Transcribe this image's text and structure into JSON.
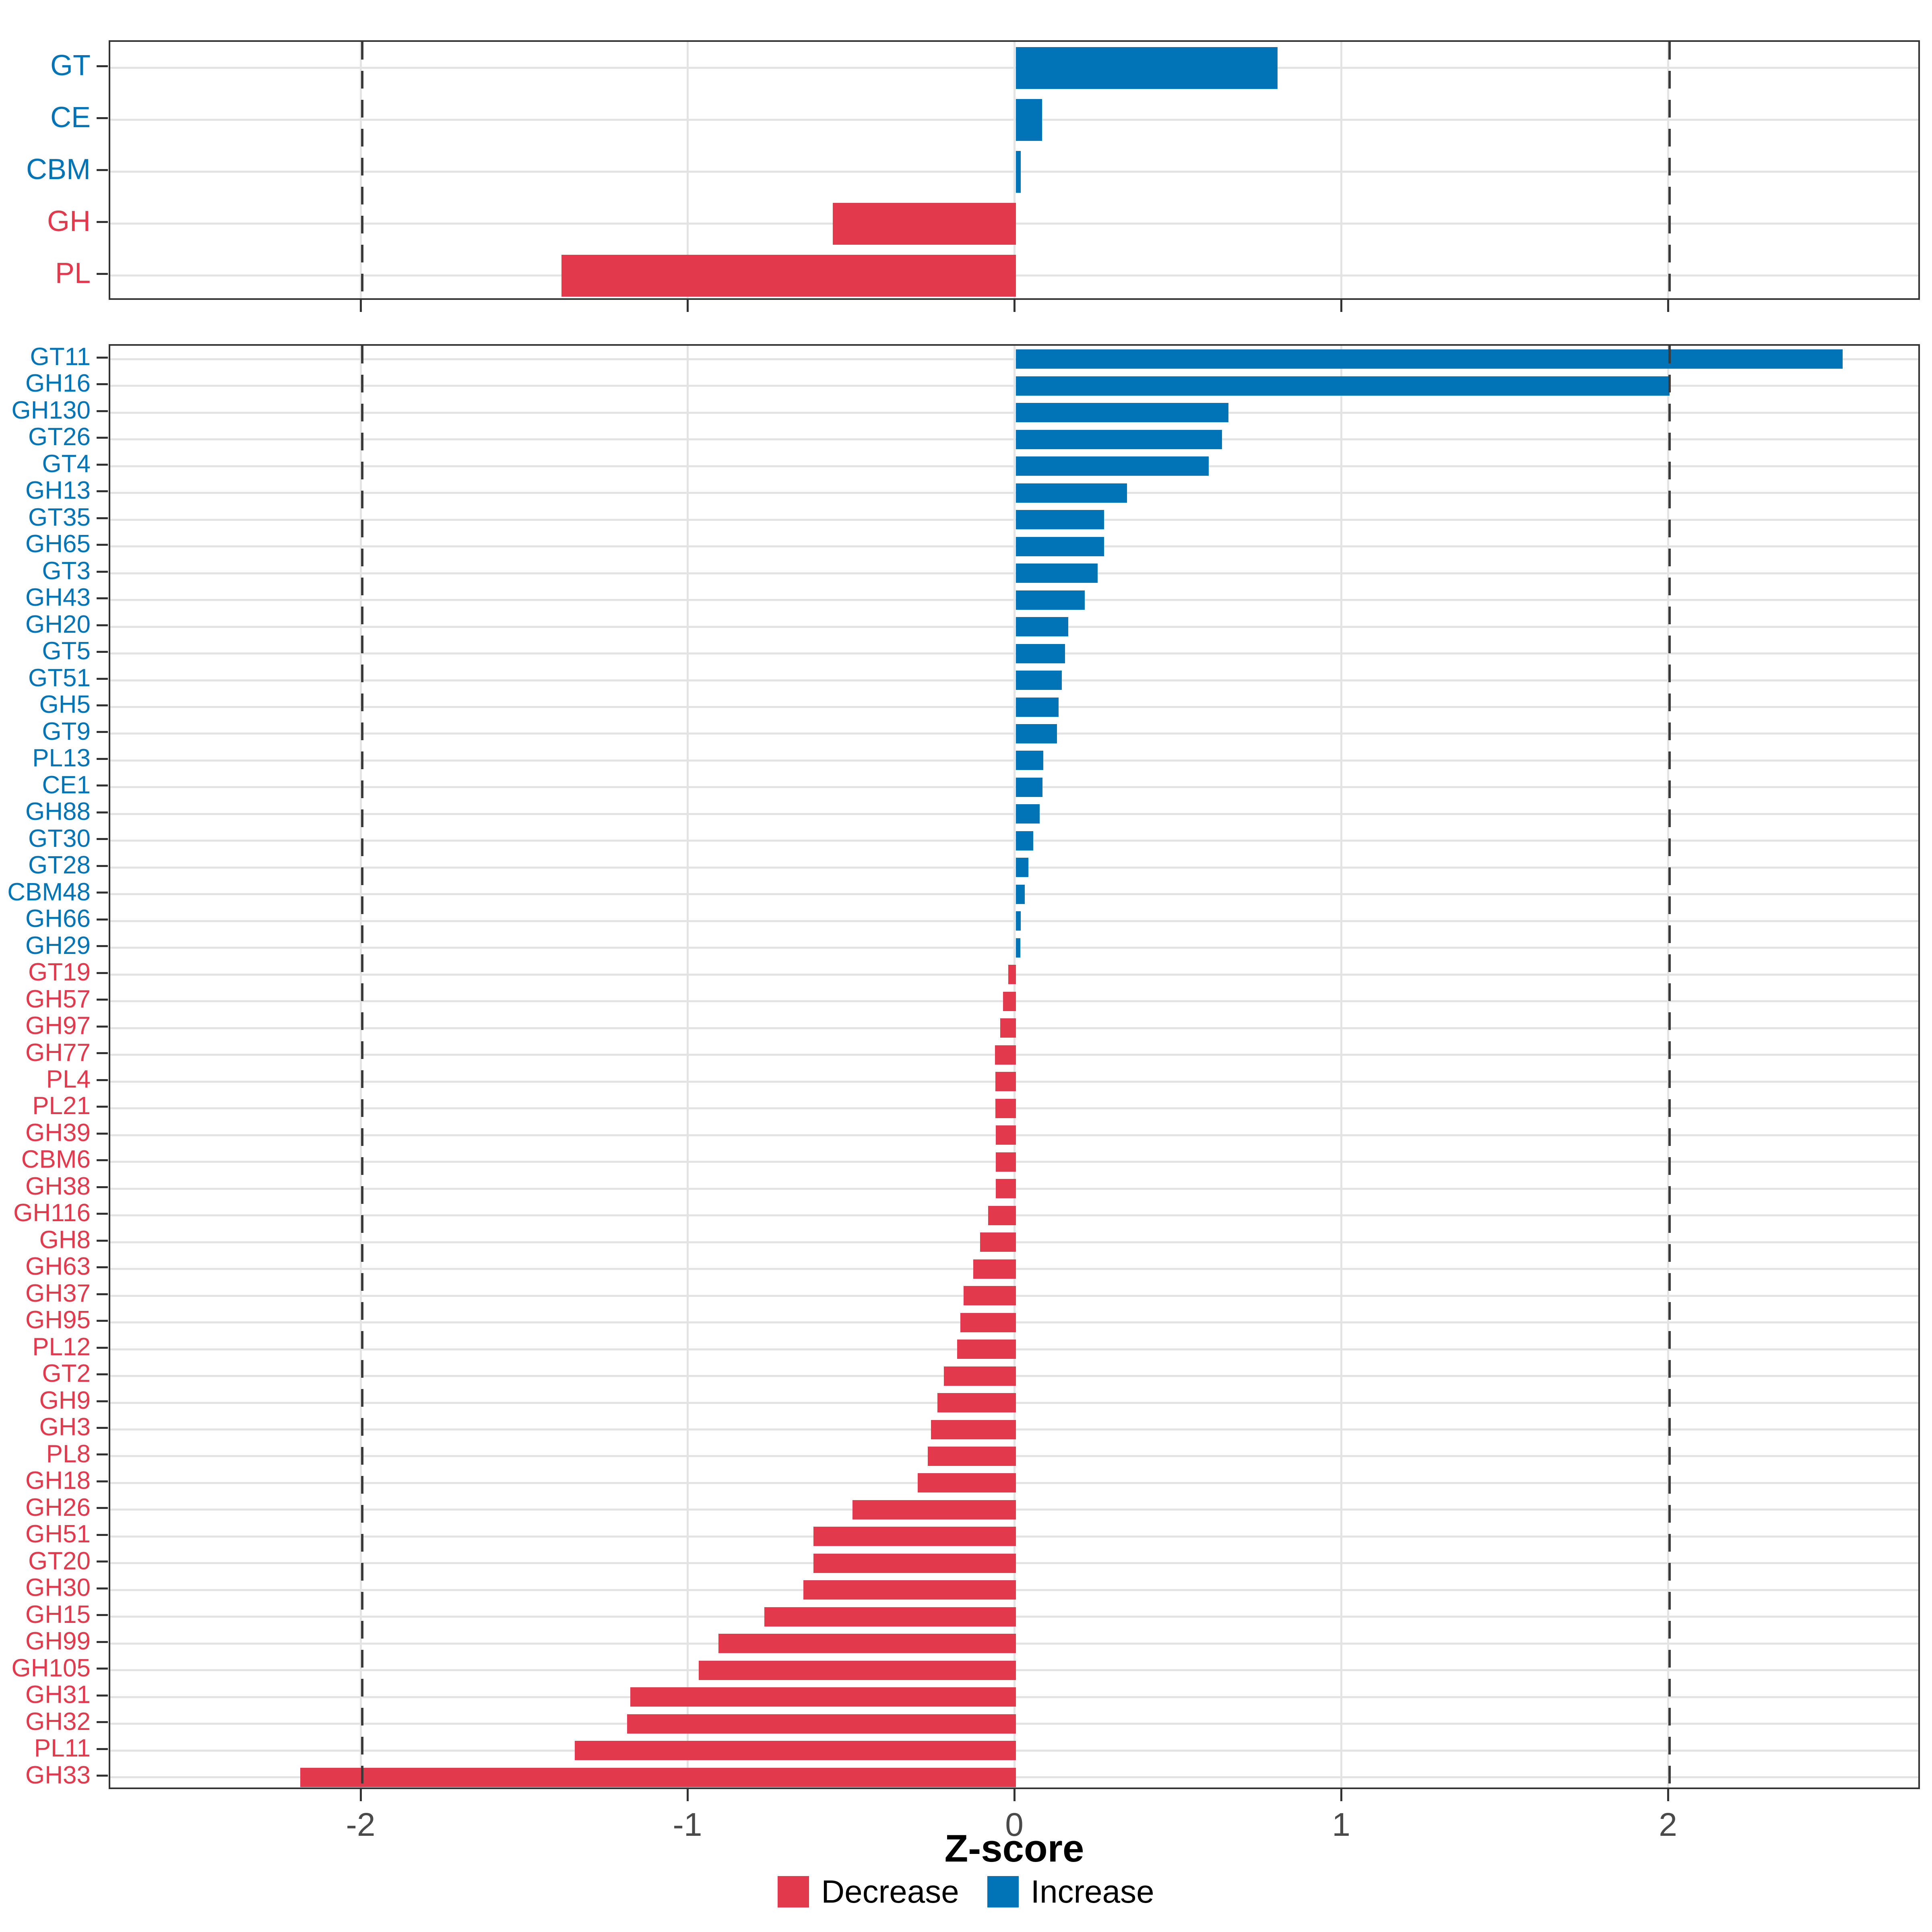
{
  "axis": {
    "xlabel": "Z-score",
    "tick_labels": [
      "-2",
      "-1",
      "0",
      "1",
      "2"
    ],
    "tick_values": [
      -2,
      -1,
      0,
      1,
      2
    ],
    "xlim": [
      -2.771,
      2.771
    ],
    "dashed_values": [
      -2,
      2
    ],
    "grid": "major-only"
  },
  "legend": {
    "position": "bottom-center",
    "items": [
      {
        "label": "Decrease",
        "color": "#e23a4c"
      },
      {
        "label": "Increase",
        "color": "#0074b6"
      }
    ]
  },
  "colors": {
    "increase": "#0074b6",
    "decrease": "#e23a4c",
    "grid": "#e3e3e3",
    "panel_border": "#333333",
    "tick": "#333333",
    "axis_text": "#4a4a4a",
    "dashed_line": "#3b3b3b"
  },
  "chart_data": [
    {
      "type": "bar",
      "orientation": "horizontal",
      "panel": "classes",
      "title": "",
      "xlabel": "Z-score",
      "categories": [
        "GT",
        "CE",
        "CBM",
        "GH",
        "PL"
      ],
      "values": [
        0.8,
        0.08,
        0.015,
        -0.56,
        -1.39
      ],
      "series_rule": "positive = Increase (blue), negative = Decrease (red)"
    },
    {
      "type": "bar",
      "orientation": "horizontal",
      "panel": "families",
      "title": "",
      "xlabel": "Z-score",
      "categories": [
        "GT11",
        "GH16",
        "GH130",
        "GT26",
        "GT4",
        "GH13",
        "GT35",
        "GH65",
        "GT3",
        "GH43",
        "GH20",
        "GT5",
        "GT51",
        "GH5",
        "GT9",
        "PL13",
        "CE1",
        "GH88",
        "GT30",
        "GT28",
        "CBM48",
        "GH66",
        "GH29",
        "GT19",
        "GH57",
        "GH97",
        "GH77",
        "PL4",
        "PL21",
        "GH39",
        "CBM6",
        "GH38",
        "GH116",
        "GH8",
        "GH63",
        "GH37",
        "GH95",
        "PL12",
        "GT2",
        "GH9",
        "GH3",
        "PL8",
        "GH18",
        "GH26",
        "GH51",
        "GT20",
        "GH30",
        "GH15",
        "GH99",
        "GH105",
        "GH31",
        "GH32",
        "PL11",
        "GH33"
      ],
      "values": [
        2.53,
        2.0,
        0.65,
        0.63,
        0.59,
        0.34,
        0.27,
        0.27,
        0.25,
        0.21,
        0.16,
        0.15,
        0.14,
        0.13,
        0.125,
        0.084,
        0.081,
        0.073,
        0.053,
        0.038,
        0.027,
        0.015,
        0.013,
        -0.023,
        -0.04,
        -0.048,
        -0.064,
        -0.063,
        -0.063,
        -0.062,
        -0.062,
        -0.061,
        -0.085,
        -0.11,
        -0.13,
        -0.16,
        -0.17,
        -0.18,
        -0.22,
        -0.24,
        -0.26,
        -0.27,
        -0.3,
        -0.5,
        -0.62,
        -0.62,
        -0.65,
        -0.77,
        -0.91,
        -0.97,
        -1.18,
        -1.19,
        -1.35,
        -2.19
      ],
      "series_rule": "positive = Increase (blue), negative = Decrease (red)"
    }
  ]
}
